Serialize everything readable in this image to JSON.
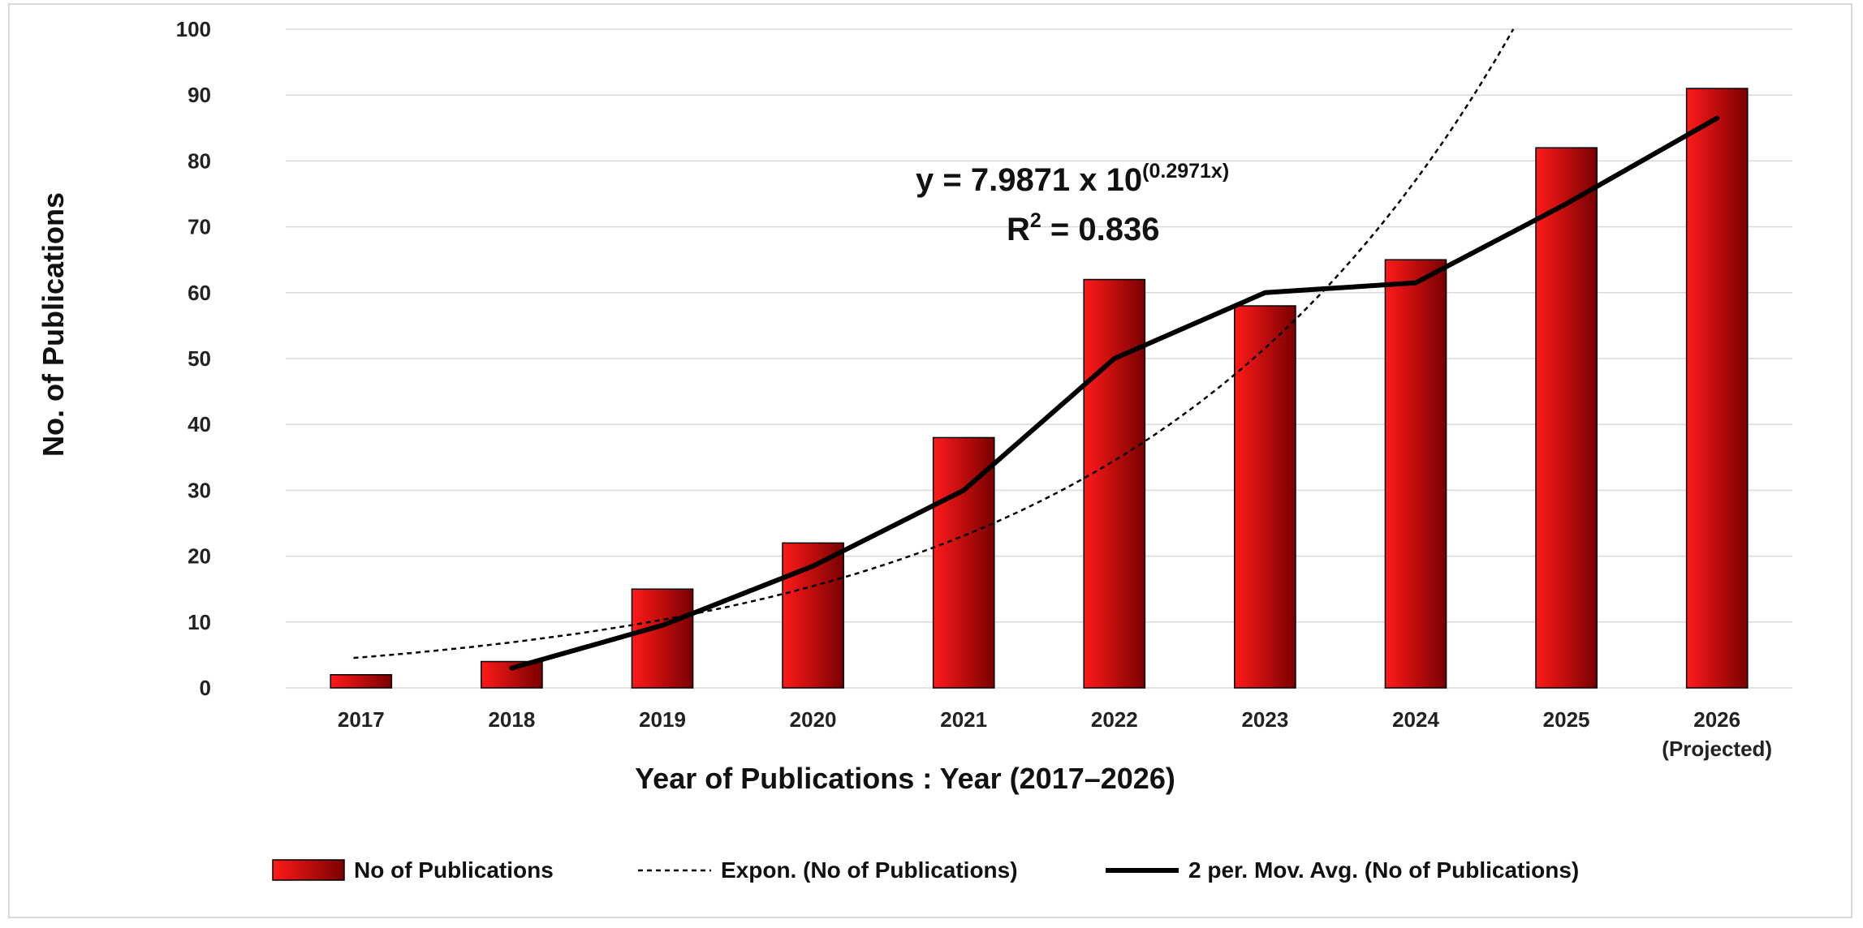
{
  "chart_data": {
    "type": "bar",
    "categories": [
      "2017",
      "2018",
      "2019",
      "2020",
      "2021",
      "2022",
      "2023",
      "2024",
      "2025",
      "2026"
    ],
    "category_sublabels": [
      "",
      "",
      "",
      "",
      "",
      "",
      "",
      "",
      "",
      "(Projected)"
    ],
    "series": [
      {
        "name": "No of Publications",
        "type": "bar",
        "values": [
          2,
          4,
          15,
          22,
          38,
          62,
          58,
          65,
          82,
          91
        ]
      },
      {
        "name": "2 per. Mov. Avg. (No of Publications)",
        "type": "line",
        "values": [
          null,
          3,
          9.5,
          18.5,
          30,
          50,
          60,
          61.5,
          73.5,
          86.5
        ]
      },
      {
        "name": "Expon. (No of Publications)",
        "type": "trendline",
        "equation": {
          "a": 7.9871,
          "b": 0.2971
        }
      }
    ],
    "xlabel": "Year of Publications : Year (2017–2026)",
    "ylabel": "No. of Publications",
    "ylim": [
      0,
      100
    ],
    "yticks": [
      0,
      10,
      20,
      30,
      40,
      50,
      60,
      70,
      80,
      90,
      100
    ],
    "grid": true,
    "legend": "bottom",
    "annotation": {
      "equation_prefix": "y = 7.9871 x 10",
      "equation_exponent": "(0.2971x)",
      "r2_prefix": "R",
      "r2_exponent": "2",
      "r2_value": " = 0.836"
    },
    "colors": {
      "bar_dark": "#7a0000",
      "bar_light": "#ff1a1a",
      "line": "#000000",
      "grid": "#d9d9d9"
    }
  }
}
